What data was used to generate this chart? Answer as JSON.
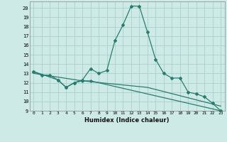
{
  "xlabel": "Humidex (Indice chaleur)",
  "xlim": [
    -0.5,
    23.5
  ],
  "ylim": [
    9,
    20.7
  ],
  "yticks": [
    9,
    10,
    11,
    12,
    13,
    14,
    15,
    16,
    17,
    18,
    19,
    20
  ],
  "xticks": [
    0,
    1,
    2,
    3,
    4,
    5,
    6,
    7,
    8,
    9,
    10,
    11,
    12,
    13,
    14,
    15,
    16,
    17,
    18,
    19,
    20,
    21,
    22,
    23
  ],
  "line_color": "#2a7d6e",
  "bg_color": "#cdeae6",
  "grid_color": "#aacfcc",
  "line1_x": [
    0,
    1,
    2,
    3,
    4,
    5,
    6,
    7,
    8,
    9,
    10,
    11,
    12,
    13,
    14,
    15,
    16,
    17,
    18,
    19,
    20,
    21,
    22,
    23
  ],
  "line1_y": [
    13.2,
    12.8,
    12.8,
    12.3,
    11.5,
    12.0,
    12.3,
    13.5,
    13.0,
    13.3,
    16.5,
    18.2,
    20.2,
    20.2,
    17.4,
    14.5,
    13.0,
    12.5,
    12.5,
    11.0,
    10.8,
    10.5,
    9.8,
    9.0
  ],
  "line2_x": [
    0,
    3,
    4,
    5,
    6,
    7,
    23
  ],
  "line2_y": [
    13.2,
    12.3,
    11.5,
    12.0,
    12.2,
    12.2,
    9.0
  ],
  "line3_x": [
    0,
    6,
    14,
    23
  ],
  "line3_y": [
    13.0,
    12.2,
    11.5,
    9.5
  ]
}
